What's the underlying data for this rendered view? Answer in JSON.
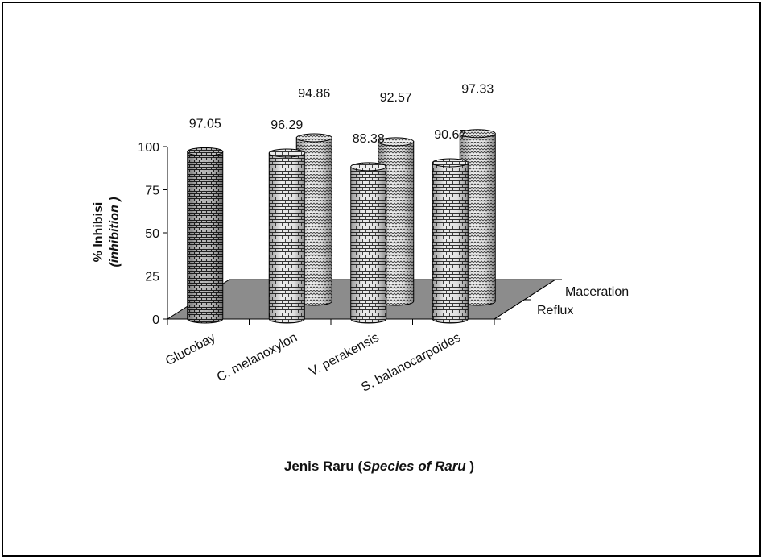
{
  "chart_data": {
    "type": "bar",
    "subtype": "3d-cylinder",
    "categories": [
      "Glucobay",
      "C. melanoxylon",
      "V. perakensis",
      "S. balanocarpoides"
    ],
    "series": [
      {
        "name": "Reflux",
        "values": [
          97.05,
          96.29,
          88.38,
          90.67
        ]
      },
      {
        "name": "Maceration",
        "values": [
          null,
          94.86,
          92.57,
          97.33
        ]
      }
    ],
    "data_labels": [
      {
        "category": "Glucobay",
        "series": "Reflux",
        "text": "97.05"
      },
      {
        "category": "C. melanoxylon",
        "series": "Reflux",
        "text": "96.29"
      },
      {
        "category": "C. melanoxylon",
        "series": "Maceration",
        "text": "94.86"
      },
      {
        "category": "V. perakensis",
        "series": "Reflux",
        "text": "88.38"
      },
      {
        "category": "V. perakensis",
        "series": "Maceration",
        "text": "92.57"
      },
      {
        "category": "S. balanocarpoides",
        "series": "Reflux",
        "text": "90.67"
      },
      {
        "category": "S. balanocarpoides",
        "series": "Maceration",
        "text": "97.33"
      }
    ],
    "yticks": [
      "0",
      "25",
      "50",
      "75",
      "100"
    ],
    "ylim": [
      0,
      100
    ],
    "ylabel_line1": "% Inhibisi",
    "ylabel_line2": "(inhibition  )",
    "xlabel_prefix": "Jenis Raru (",
    "xlabel_italic": "Species of Raru",
    "xlabel_suffix": " )",
    "depth_labels": [
      "Maceration",
      "Reflux"
    ],
    "floor_color": "#8c8c8c",
    "bar_fill": "#e6e6e6",
    "grid": false
  }
}
